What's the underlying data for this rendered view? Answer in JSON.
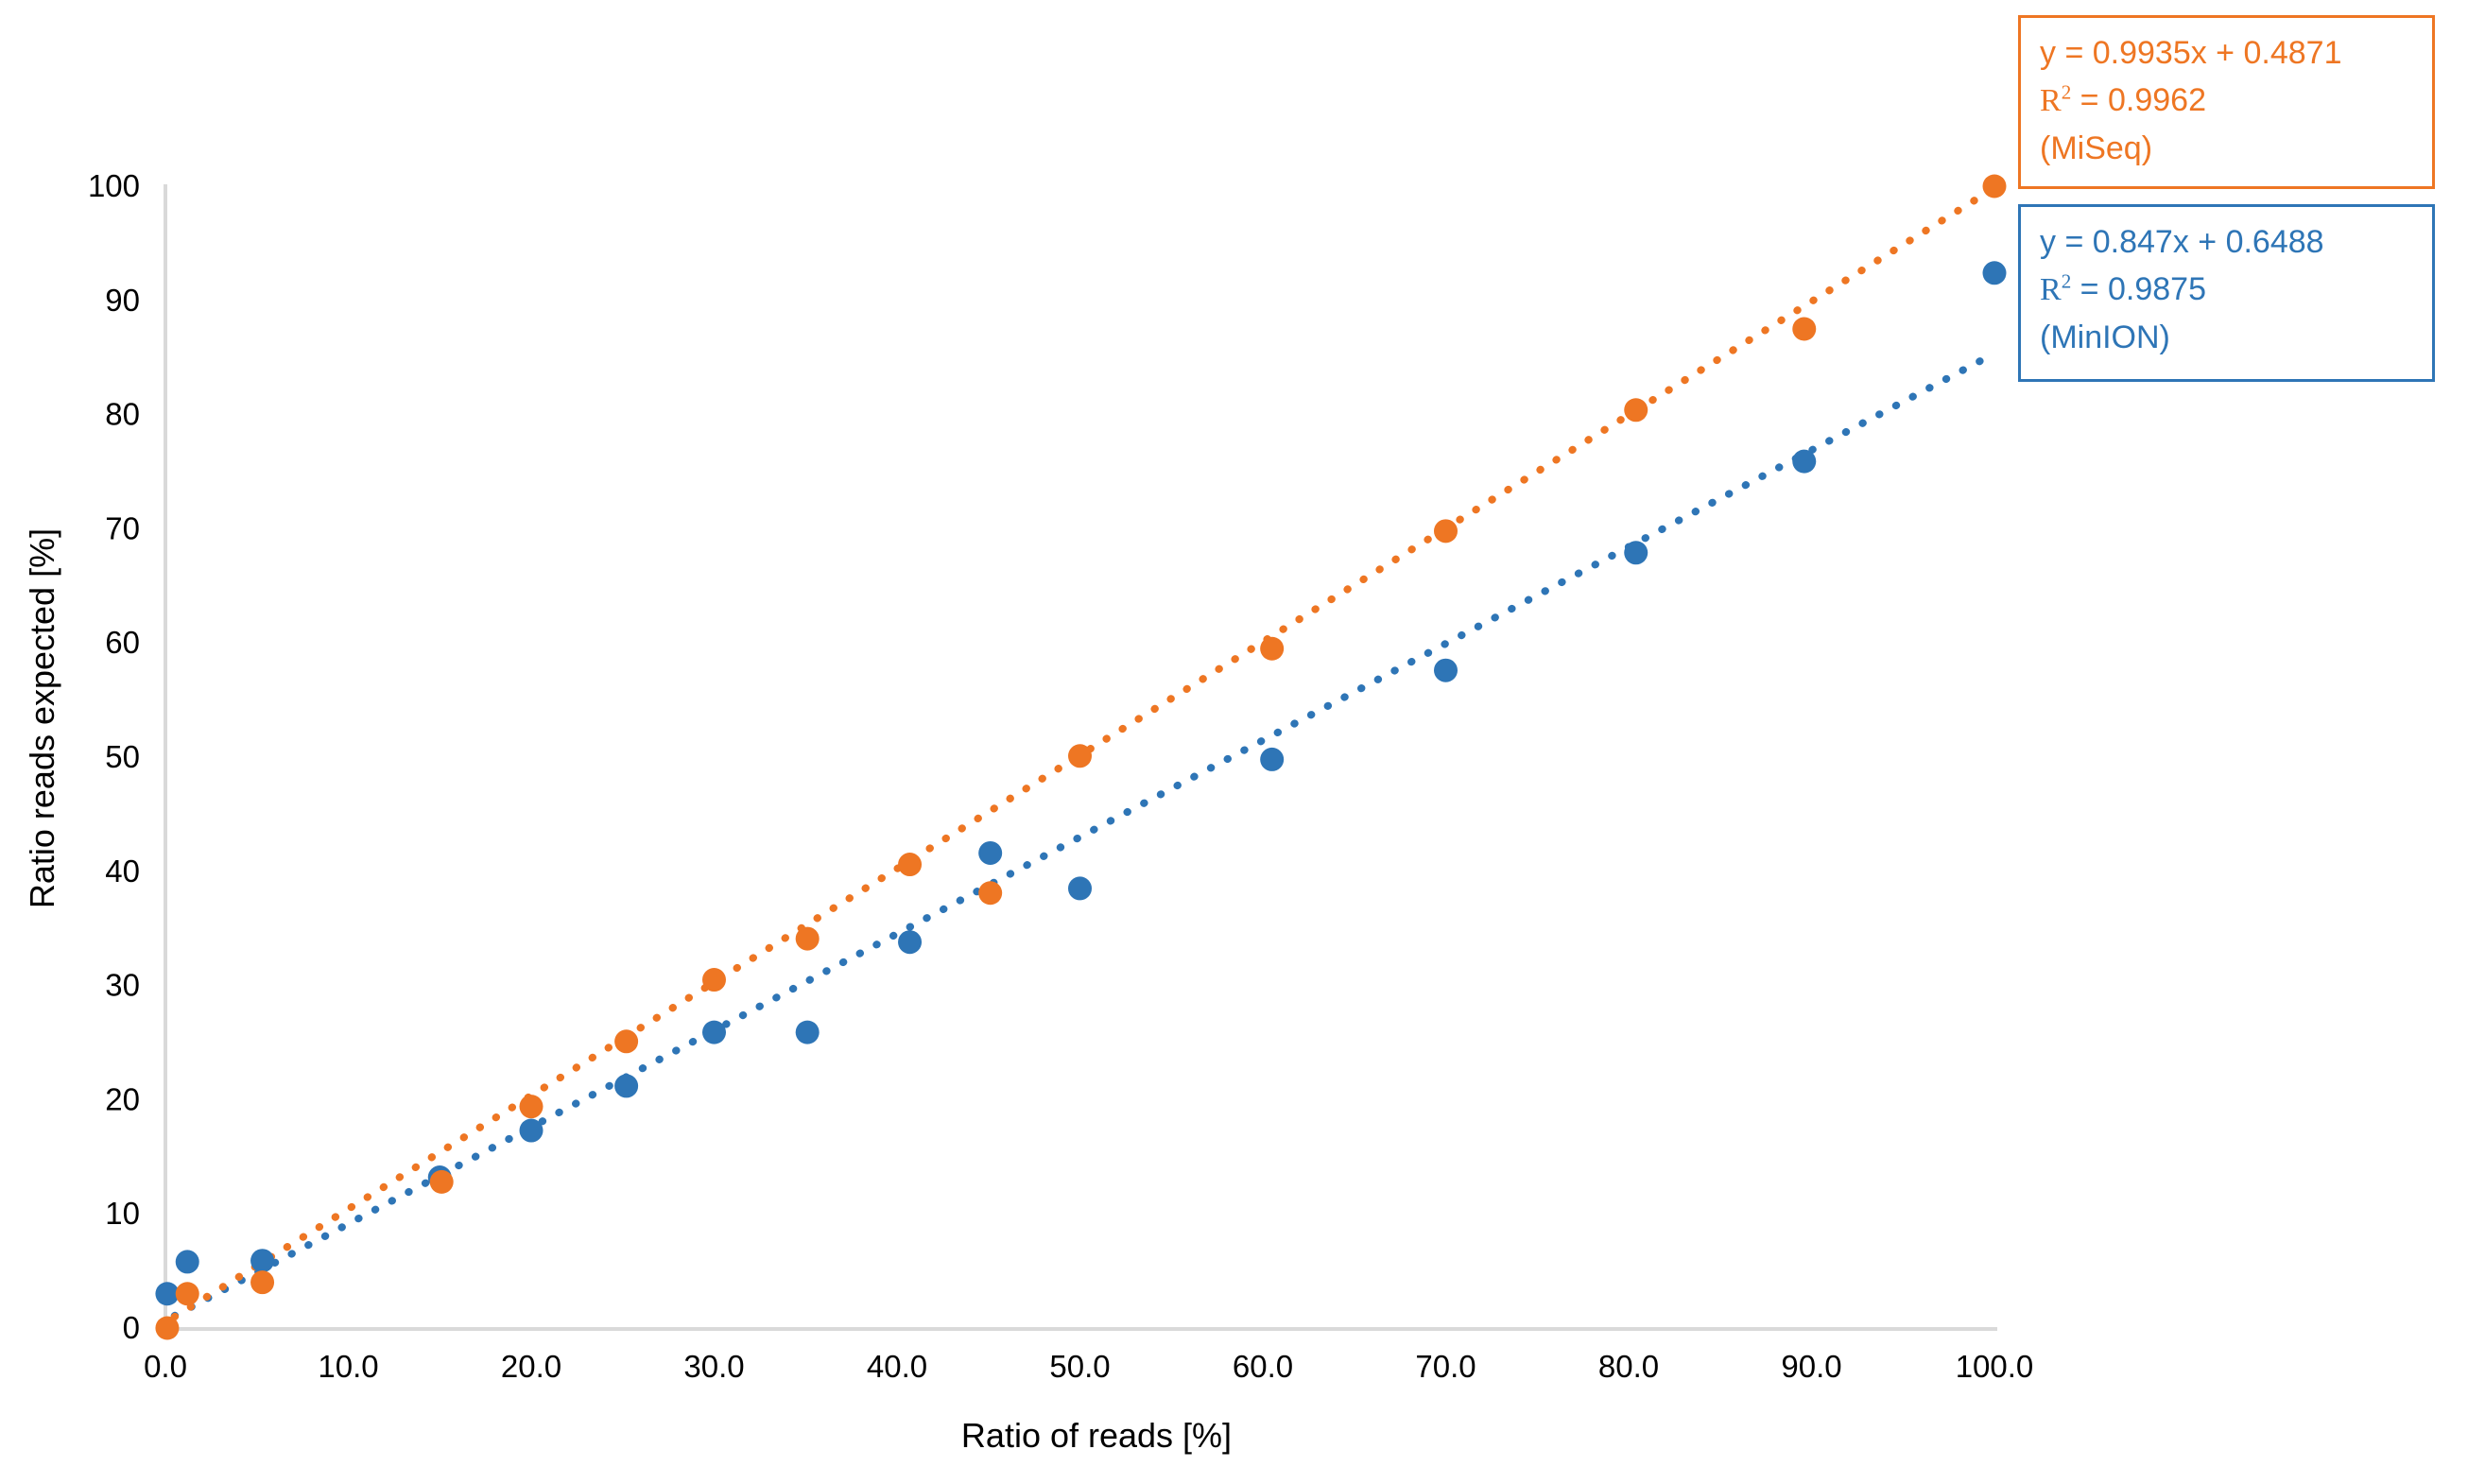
{
  "chart_data": {
    "type": "scatter",
    "title": "",
    "xlabel": "Ratio of reads [%]",
    "ylabel": "Ratio reads expected [%]",
    "xlim": [
      0,
      100
    ],
    "ylim": [
      0,
      100
    ],
    "grid": false,
    "legend_position": "stacked boxes top-right",
    "x_ticks": [
      "0.0",
      "10.0",
      "20.0",
      "30.0",
      "40.0",
      "50.0",
      "60.0",
      "70.0",
      "80.0",
      "90.0",
      "100.0"
    ],
    "y_ticks": [
      "0",
      "10",
      "20",
      "30",
      "40",
      "50",
      "60",
      "70",
      "80",
      "90",
      "100"
    ],
    "axis_color": "#D9D9D9",
    "series": [
      {
        "id": "miseq",
        "name": "MiSeq",
        "color": "#EE7623",
        "marker": "circle",
        "points": [
          [
            0.1,
            0.0
          ],
          [
            1.2,
            3.0
          ],
          [
            5.3,
            4.0
          ],
          [
            15.1,
            12.8
          ],
          [
            20.0,
            19.4
          ],
          [
            25.2,
            25.1
          ],
          [
            30.0,
            30.5
          ],
          [
            35.1,
            34.1
          ],
          [
            40.7,
            40.6
          ],
          [
            45.1,
            38.1
          ],
          [
            50.0,
            50.1
          ],
          [
            60.5,
            59.5
          ],
          [
            70.0,
            69.8
          ],
          [
            80.4,
            80.4
          ],
          [
            89.6,
            87.5
          ],
          [
            100.0,
            100.0
          ]
        ],
        "trendline": {
          "style": "dotted",
          "slope": 0.9935,
          "intercept": 0.4871,
          "x_start": 0.5,
          "x_end": 100
        }
      },
      {
        "id": "minion",
        "name": "MinION",
        "color": "#2E75B6",
        "marker": "circle",
        "points": [
          [
            0.1,
            3.0
          ],
          [
            1.2,
            5.8
          ],
          [
            5.3,
            5.9
          ],
          [
            15.0,
            13.2
          ],
          [
            20.0,
            17.3
          ],
          [
            25.2,
            21.2
          ],
          [
            30.0,
            25.9
          ],
          [
            35.1,
            25.9
          ],
          [
            40.7,
            33.8
          ],
          [
            45.1,
            41.6
          ],
          [
            50.0,
            38.5
          ],
          [
            60.5,
            49.8
          ],
          [
            70.0,
            57.6
          ],
          [
            80.4,
            67.9
          ],
          [
            89.6,
            75.9
          ],
          [
            100.0,
            92.4
          ]
        ],
        "trendline": {
          "style": "dotted",
          "slope": 0.847,
          "intercept": 0.6488,
          "x_start": 0.5,
          "x_end": 100
        }
      }
    ]
  },
  "annotations": {
    "miseq_box": {
      "equation": "y = 0.9935x + 0.4871",
      "r2_prefix": "R",
      "r2_sup": "2",
      "r2_rest": " = 0.9962",
      "label": "(MiSeq)"
    },
    "minion_box": {
      "equation": "y = 0.847x + 0.6488",
      "r2_prefix": "R",
      "r2_sup": "2",
      "r2_rest": " = 0.9875",
      "label": "(MinION)"
    }
  }
}
